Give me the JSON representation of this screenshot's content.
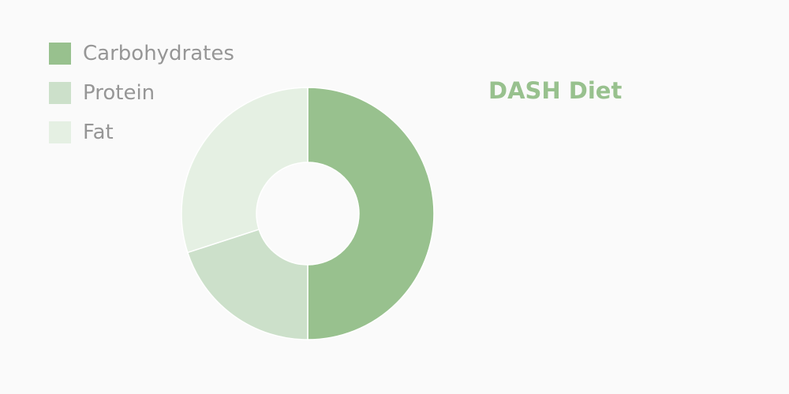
{
  "chart_data": {
    "type": "pie",
    "title": "DASH Diet",
    "hole": true,
    "legend_position": "top-left",
    "categories": [
      "Carbohydrates",
      "Protein",
      "Fat"
    ],
    "values": [
      50,
      20,
      30
    ],
    "colors": [
      "#98c18e",
      "#cce0ca",
      "#e5f0e3"
    ]
  },
  "colors": {
    "background": "#fafafa",
    "title": "#98c18e",
    "legend_text": "#969696",
    "slice_border": "#ffffff"
  }
}
